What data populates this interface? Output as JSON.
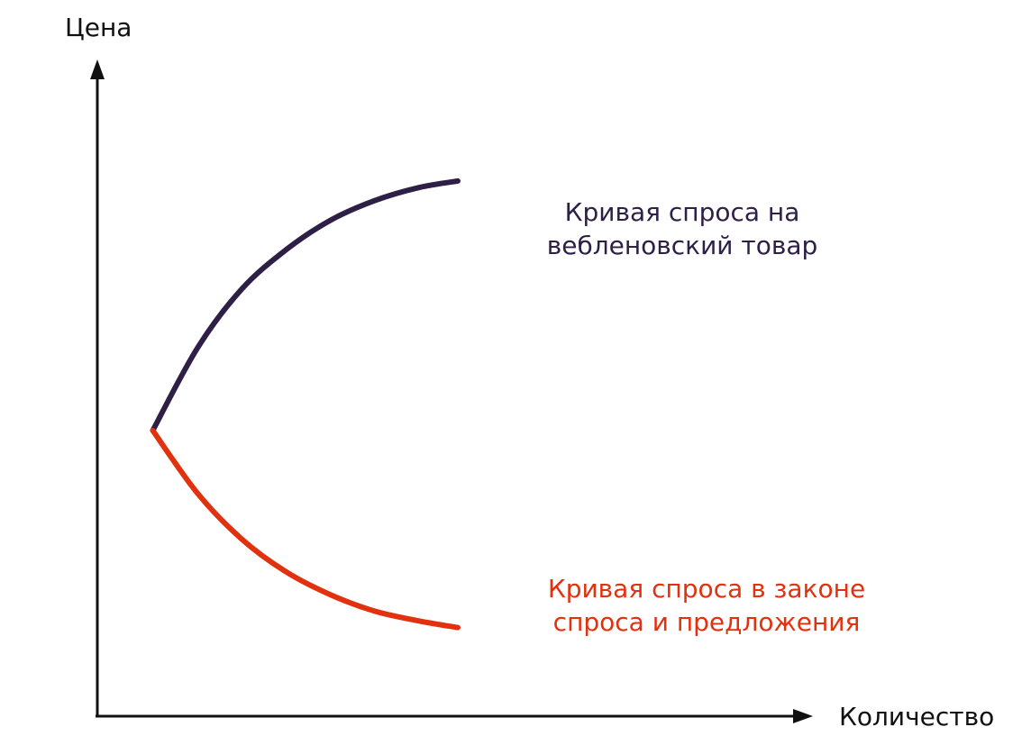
{
  "chart_data": {
    "type": "line",
    "title": "",
    "ylabel": "Цена",
    "xlabel": "Количество",
    "grid": false,
    "series": [
      {
        "name": "Кривая спроса на вебленовский товар",
        "label_lines": [
          "Кривая спроса на",
          "вебленовский товар"
        ],
        "color": "#2e1f47",
        "x": [
          1.0,
          1.8,
          2.6,
          3.4,
          4.2,
          5.0,
          5.8,
          6.5
        ],
        "y": [
          4.35,
          5.6,
          6.5,
          7.1,
          7.55,
          7.85,
          8.05,
          8.15
        ]
      },
      {
        "name": "Кривая спроса в законе спроса и предложения",
        "label_lines": [
          "Кривая спроса в законе",
          "спроса и предложения"
        ],
        "color": "#e2310e",
        "x": [
          1.0,
          1.8,
          2.6,
          3.4,
          4.2,
          5.0,
          5.8,
          6.5
        ],
        "y": [
          4.35,
          3.4,
          2.7,
          2.2,
          1.85,
          1.6,
          1.45,
          1.35
        ]
      }
    ],
    "xlim": [
      0,
      13
    ],
    "ylim": [
      0,
      10
    ]
  }
}
